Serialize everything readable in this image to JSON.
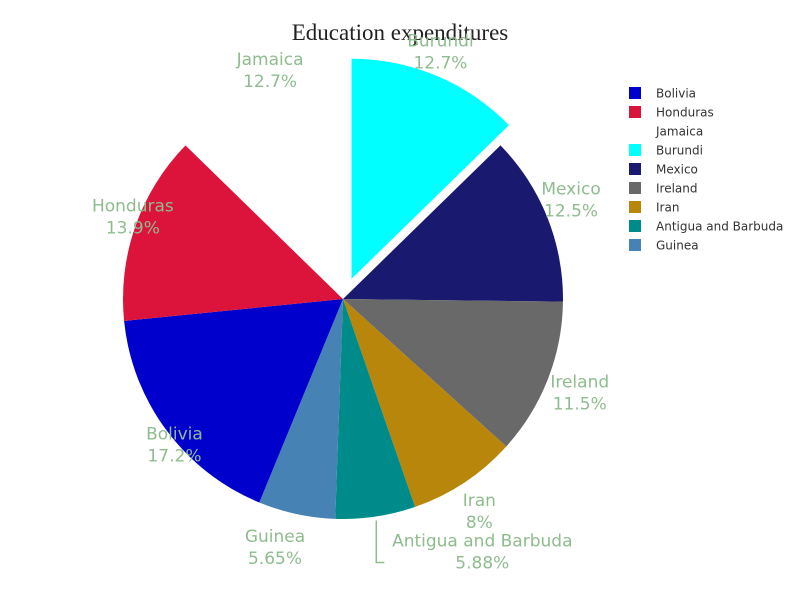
{
  "chart_data": {
    "type": "pie",
    "title": "Education expenditures",
    "label_color": "#8fbc8f",
    "slices": [
      {
        "label": "Burundi",
        "percent_text": "12.7%",
        "value": 12.7,
        "color": "#00ffff",
        "pulled": true
      },
      {
        "label": "Mexico",
        "percent_text": "12.5%",
        "value": 12.5,
        "color": "#191970"
      },
      {
        "label": "Ireland",
        "percent_text": "11.5%",
        "value": 11.5,
        "color": "#696969"
      },
      {
        "label": "Iran",
        "percent_text": "8%",
        "value": 8.0,
        "color": "#b8860b"
      },
      {
        "label": "Antigua and Barbuda",
        "percent_text": "5.88%",
        "value": 5.88,
        "color": "#008b8b"
      },
      {
        "label": "Guinea",
        "percent_text": "5.65%",
        "value": 5.65,
        "color": "#4682b4"
      },
      {
        "label": "Bolivia",
        "percent_text": "17.2%",
        "value": 17.2,
        "color": "#0000cd"
      },
      {
        "label": "Honduras",
        "percent_text": "13.9%",
        "value": 13.9,
        "color": "#dc143c"
      },
      {
        "label": "Jamaica",
        "percent_text": "12.7%",
        "value": 12.7,
        "color": "#ffffff"
      }
    ],
    "legend": {
      "placement": "right",
      "items": [
        {
          "label": "Bolivia",
          "color": "#0000cd"
        },
        {
          "label": "Honduras",
          "color": "#dc143c"
        },
        {
          "label": "Jamaica",
          "color": "#ffffff"
        },
        {
          "label": "Burundi",
          "color": "#00ffff"
        },
        {
          "label": "Mexico",
          "color": "#191970"
        },
        {
          "label": "Ireland",
          "color": "#696969"
        },
        {
          "label": "Iran",
          "color": "#b8860b"
        },
        {
          "label": "Antigua and Barbuda",
          "color": "#008b8b"
        },
        {
          "label": "Guinea",
          "color": "#4682b4"
        }
      ]
    }
  }
}
